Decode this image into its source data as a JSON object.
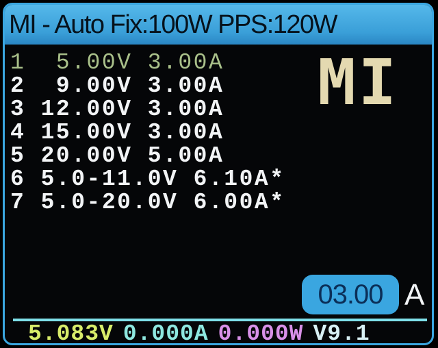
{
  "header": {
    "title": "MI - Auto Fix:100W PPS:120W"
  },
  "logo": "MI",
  "pdo_list": [
    {
      "index": "1",
      "voltage": "  5.00V",
      "current": "3.00A",
      "active": true
    },
    {
      "index": "2",
      "voltage": "  9.00V",
      "current": "3.00A",
      "active": false
    },
    {
      "index": "3",
      "voltage": " 12.00V",
      "current": "3.00A",
      "active": false
    },
    {
      "index": "4",
      "voltage": " 15.00V",
      "current": "3.00A",
      "active": false
    },
    {
      "index": "5",
      "voltage": " 20.00V",
      "current": "5.00A",
      "active": false
    },
    {
      "index": "6",
      "voltage": " 5.0-11.0V",
      "current": "6.10A*",
      "active": false
    },
    {
      "index": "7",
      "voltage": " 5.0-20.0V",
      "current": "6.00A*",
      "active": false
    }
  ],
  "current_setting": {
    "value": "03.00",
    "unit": "A"
  },
  "status_bar": {
    "voltage": "5.083V",
    "current": "0.000A",
    "power": "0.000W",
    "version": "V9.1"
  },
  "colors": {
    "header": "#3aa6e0",
    "voltage": "#d8ec6a",
    "current": "#8ee8e0",
    "power": "#d890e8",
    "version": "#d8f0f4",
    "active_row": "#a9c08a",
    "logo": "#e4d9b0"
  }
}
